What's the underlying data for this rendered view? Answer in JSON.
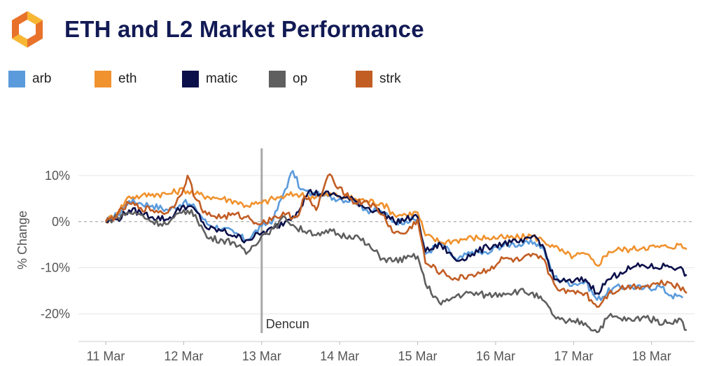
{
  "header": {
    "title": "ETH and L2 Market Performance",
    "logo_icon": "hexagon-logo-icon",
    "logo_colors": [
      "#f7b733",
      "#e8722a"
    ]
  },
  "chart_data": {
    "type": "line",
    "title": "ETH and L2 Market Performance",
    "xlabel": "",
    "ylabel": "% Change",
    "x_ticks": [
      "11 Mar",
      "12 Mar",
      "13 Mar",
      "14 Mar",
      "15 Mar",
      "16 Mar",
      "17 Mar",
      "18 Mar"
    ],
    "y_ticks": [
      "10%",
      "0%",
      "-10%",
      "-20%"
    ],
    "y_tick_values": [
      10,
      0,
      -10,
      -20
    ],
    "xlim": [
      10.65,
      18.55
    ],
    "ylim": [
      -26,
      15
    ],
    "grid": true,
    "zero_line": "dashed",
    "legend_position": "top-left",
    "annotation": {
      "label": "Dencun",
      "x": 13.0
    },
    "series": [
      {
        "name": "arb",
        "color": "#5b9bdc",
        "points": [
          [
            11.0,
            0
          ],
          [
            11.15,
            1.5
          ],
          [
            11.3,
            4.5
          ],
          [
            11.45,
            4.0
          ],
          [
            11.6,
            3.5
          ],
          [
            11.8,
            2.5
          ],
          [
            12.0,
            4.2
          ],
          [
            12.15,
            3.0
          ],
          [
            12.3,
            -0.5
          ],
          [
            12.5,
            -1.5
          ],
          [
            12.65,
            -2.5
          ],
          [
            12.8,
            -4.0
          ],
          [
            13.0,
            -1.0
          ],
          [
            13.15,
            0.5
          ],
          [
            13.3,
            7.0
          ],
          [
            13.4,
            11.0
          ],
          [
            13.5,
            7.0
          ],
          [
            13.65,
            6.0
          ],
          [
            13.85,
            5.5
          ],
          [
            14.0,
            5.0
          ],
          [
            14.2,
            4.5
          ],
          [
            14.35,
            2.5
          ],
          [
            14.55,
            2.0
          ],
          [
            14.7,
            0.0
          ],
          [
            14.85,
            0.2
          ],
          [
            15.0,
            0.5
          ],
          [
            15.1,
            -7.0
          ],
          [
            15.3,
            -4.5
          ],
          [
            15.5,
            -8.5
          ],
          [
            15.7,
            -6.5
          ],
          [
            15.9,
            -7.0
          ],
          [
            16.0,
            -5.5
          ],
          [
            16.2,
            -4.8
          ],
          [
            16.35,
            -5.0
          ],
          [
            16.5,
            -4.5
          ],
          [
            16.6,
            -5.5
          ],
          [
            16.75,
            -12.0
          ],
          [
            16.9,
            -13.0
          ],
          [
            17.0,
            -13.5
          ],
          [
            17.15,
            -13.0
          ],
          [
            17.3,
            -17.0
          ],
          [
            17.5,
            -14.5
          ],
          [
            17.7,
            -14.0
          ],
          [
            17.9,
            -14.5
          ],
          [
            18.1,
            -14.0
          ],
          [
            18.25,
            -16.0
          ],
          [
            18.4,
            -16.5
          ]
        ]
      },
      {
        "name": "eth",
        "color": "#f0922e",
        "points": [
          [
            11.0,
            0
          ],
          [
            11.15,
            2.0
          ],
          [
            11.3,
            5.5
          ],
          [
            11.45,
            5.5
          ],
          [
            11.6,
            6.0
          ],
          [
            11.8,
            6.0
          ],
          [
            12.0,
            7.0
          ],
          [
            12.15,
            6.0
          ],
          [
            12.3,
            5.5
          ],
          [
            12.5,
            5.0
          ],
          [
            12.65,
            4.5
          ],
          [
            12.8,
            3.5
          ],
          [
            13.0,
            4.0
          ],
          [
            13.15,
            5.0
          ],
          [
            13.3,
            5.5
          ],
          [
            13.45,
            6.0
          ],
          [
            13.6,
            5.5
          ],
          [
            13.75,
            5.5
          ],
          [
            13.9,
            6.0
          ],
          [
            14.0,
            5.5
          ],
          [
            14.2,
            5.0
          ],
          [
            14.35,
            4.5
          ],
          [
            14.55,
            4.0
          ],
          [
            14.7,
            1.5
          ],
          [
            14.85,
            1.5
          ],
          [
            15.0,
            2.0
          ],
          [
            15.1,
            -3.0
          ],
          [
            15.3,
            -4.5
          ],
          [
            15.5,
            -4.0
          ],
          [
            15.7,
            -3.5
          ],
          [
            15.9,
            -3.5
          ],
          [
            16.1,
            -3.5
          ],
          [
            16.3,
            -3.5
          ],
          [
            16.45,
            -3.0
          ],
          [
            16.6,
            -4.0
          ],
          [
            16.75,
            -5.5
          ],
          [
            16.9,
            -7.0
          ],
          [
            17.0,
            -7.5
          ],
          [
            17.15,
            -7.0
          ],
          [
            17.3,
            -9.5
          ],
          [
            17.45,
            -6.5
          ],
          [
            17.6,
            -6.0
          ],
          [
            17.75,
            -6.0
          ],
          [
            17.9,
            -5.5
          ],
          [
            18.05,
            -5.5
          ],
          [
            18.2,
            -5.5
          ],
          [
            18.35,
            -5.0
          ],
          [
            18.45,
            -6.0
          ]
        ]
      },
      {
        "name": "matic",
        "color": "#0b0f4a",
        "points": [
          [
            11.0,
            0
          ],
          [
            11.15,
            0.5
          ],
          [
            11.3,
            2.5
          ],
          [
            11.45,
            2.0
          ],
          [
            11.6,
            1.0
          ],
          [
            11.8,
            0.5
          ],
          [
            12.0,
            3.5
          ],
          [
            12.15,
            2.5
          ],
          [
            12.3,
            -1.5
          ],
          [
            12.5,
            -2.0
          ],
          [
            12.65,
            -3.0
          ],
          [
            12.8,
            -4.0
          ],
          [
            13.0,
            -2.5
          ],
          [
            13.15,
            -1.5
          ],
          [
            13.3,
            0.0
          ],
          [
            13.45,
            2.0
          ],
          [
            13.6,
            6.5
          ],
          [
            13.75,
            6.0
          ],
          [
            13.9,
            6.0
          ],
          [
            14.0,
            5.5
          ],
          [
            14.2,
            4.5
          ],
          [
            14.35,
            3.0
          ],
          [
            14.55,
            2.0
          ],
          [
            14.7,
            0.0
          ],
          [
            14.85,
            0.5
          ],
          [
            15.0,
            1.0
          ],
          [
            15.1,
            -6.5
          ],
          [
            15.3,
            -5.0
          ],
          [
            15.5,
            -8.5
          ],
          [
            15.7,
            -7.0
          ],
          [
            15.9,
            -5.5
          ],
          [
            16.0,
            -5.0
          ],
          [
            16.2,
            -4.5
          ],
          [
            16.35,
            -4.5
          ],
          [
            16.5,
            -3.0
          ],
          [
            16.6,
            -5.0
          ],
          [
            16.75,
            -12.5
          ],
          [
            16.9,
            -13.0
          ],
          [
            17.0,
            -13.0
          ],
          [
            17.15,
            -12.5
          ],
          [
            17.3,
            -15.5
          ],
          [
            17.45,
            -12.5
          ],
          [
            17.6,
            -11.0
          ],
          [
            17.75,
            -10.0
          ],
          [
            17.9,
            -9.5
          ],
          [
            18.05,
            -10.0
          ],
          [
            18.2,
            -9.5
          ],
          [
            18.35,
            -10.0
          ],
          [
            18.45,
            -11.5
          ]
        ]
      },
      {
        "name": "op",
        "color": "#5f5f5f",
        "points": [
          [
            11.0,
            0
          ],
          [
            11.15,
            1.0
          ],
          [
            11.3,
            2.0
          ],
          [
            11.45,
            1.5
          ],
          [
            11.6,
            0.0
          ],
          [
            11.8,
            -0.5
          ],
          [
            12.0,
            2.5
          ],
          [
            12.15,
            1.5
          ],
          [
            12.3,
            -3.5
          ],
          [
            12.5,
            -4.0
          ],
          [
            12.65,
            -4.5
          ],
          [
            12.8,
            -7.0
          ],
          [
            13.0,
            -3.0
          ],
          [
            13.15,
            -1.5
          ],
          [
            13.3,
            1.0
          ],
          [
            13.45,
            -1.5
          ],
          [
            13.6,
            -2.0
          ],
          [
            13.75,
            -3.0
          ],
          [
            13.9,
            -2.0
          ],
          [
            14.0,
            -3.0
          ],
          [
            14.2,
            -3.0
          ],
          [
            14.35,
            -5.0
          ],
          [
            14.55,
            -8.0
          ],
          [
            14.7,
            -8.5
          ],
          [
            14.85,
            -8.0
          ],
          [
            15.0,
            -7.5
          ],
          [
            15.1,
            -13.5
          ],
          [
            15.3,
            -18.0
          ],
          [
            15.5,
            -16.0
          ],
          [
            15.7,
            -15.5
          ],
          [
            15.9,
            -16.0
          ],
          [
            16.1,
            -15.5
          ],
          [
            16.3,
            -15.0
          ],
          [
            16.45,
            -15.5
          ],
          [
            16.6,
            -17.0
          ],
          [
            16.75,
            -20.5
          ],
          [
            16.9,
            -22.0
          ],
          [
            17.0,
            -21.5
          ],
          [
            17.15,
            -22.0
          ],
          [
            17.3,
            -24.0
          ],
          [
            17.45,
            -20.5
          ],
          [
            17.6,
            -21.0
          ],
          [
            17.75,
            -21.5
          ],
          [
            17.9,
            -20.5
          ],
          [
            18.05,
            -21.5
          ],
          [
            18.2,
            -22.0
          ],
          [
            18.35,
            -21.0
          ],
          [
            18.45,
            -23.5
          ]
        ]
      },
      {
        "name": "strk",
        "color": "#c25d24",
        "points": [
          [
            11.0,
            0
          ],
          [
            11.15,
            1.5
          ],
          [
            11.3,
            4.0
          ],
          [
            11.45,
            3.0
          ],
          [
            11.6,
            2.5
          ],
          [
            11.8,
            2.0
          ],
          [
            11.95,
            5.5
          ],
          [
            12.05,
            10.0
          ],
          [
            12.15,
            5.0
          ],
          [
            12.3,
            1.5
          ],
          [
            12.5,
            1.0
          ],
          [
            12.65,
            1.5
          ],
          [
            12.8,
            1.0
          ],
          [
            13.0,
            -0.5
          ],
          [
            13.15,
            1.0
          ],
          [
            13.3,
            1.5
          ],
          [
            13.45,
            1.0
          ],
          [
            13.55,
            5.5
          ],
          [
            13.7,
            2.5
          ],
          [
            13.85,
            10.0
          ],
          [
            14.0,
            7.5
          ],
          [
            14.2,
            4.0
          ],
          [
            14.35,
            4.5
          ],
          [
            14.55,
            1.5
          ],
          [
            14.7,
            -2.5
          ],
          [
            14.85,
            -2.5
          ],
          [
            15.0,
            0.5
          ],
          [
            15.1,
            -9.0
          ],
          [
            15.3,
            -11.0
          ],
          [
            15.5,
            -12.5
          ],
          [
            15.7,
            -11.5
          ],
          [
            15.9,
            -10.5
          ],
          [
            16.1,
            -8.0
          ],
          [
            16.3,
            -8.5
          ],
          [
            16.45,
            -7.5
          ],
          [
            16.6,
            -8.0
          ],
          [
            16.75,
            -13.5
          ],
          [
            16.9,
            -15.5
          ],
          [
            17.0,
            -15.0
          ],
          [
            17.15,
            -15.5
          ],
          [
            17.3,
            -18.5
          ],
          [
            17.45,
            -15.5
          ],
          [
            17.6,
            -14.5
          ],
          [
            17.75,
            -14.0
          ],
          [
            17.9,
            -14.0
          ],
          [
            18.05,
            -13.5
          ],
          [
            18.2,
            -13.0
          ],
          [
            18.35,
            -14.0
          ],
          [
            18.45,
            -15.5
          ]
        ]
      }
    ]
  }
}
